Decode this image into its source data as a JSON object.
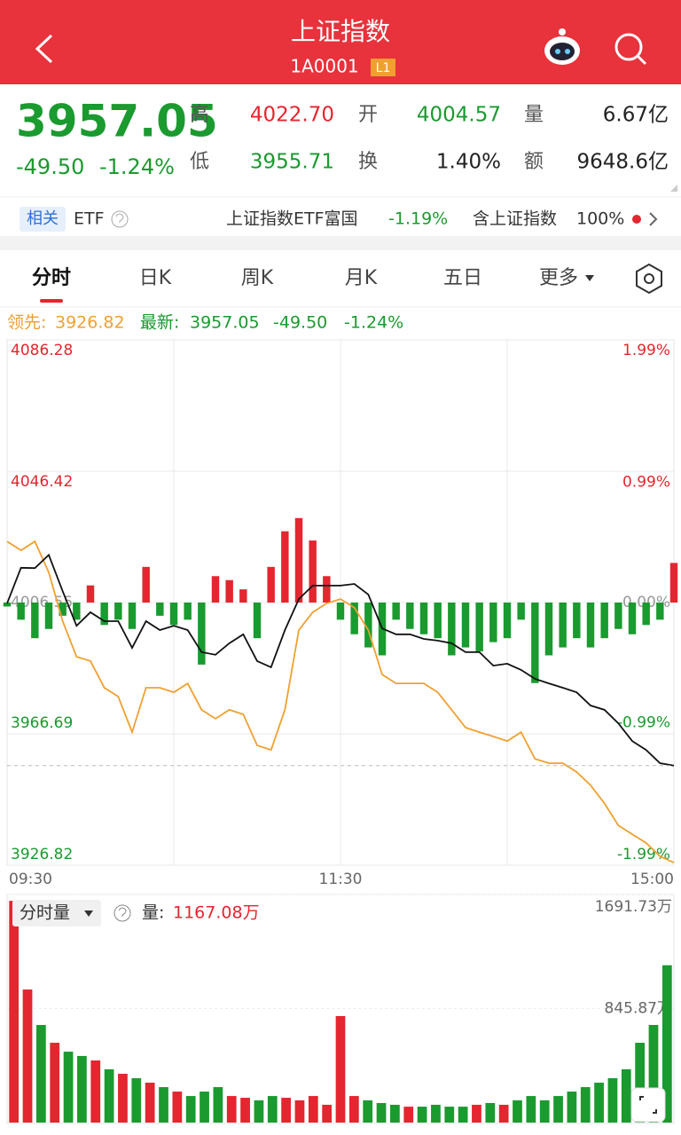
{
  "header": {
    "title": "上证指数",
    "code": "1A0001",
    "badge": "L1"
  },
  "quote": {
    "price": "3957.05",
    "change": "-49.50",
    "change_pct": "-1.24%",
    "stats": [
      {
        "label": "高",
        "value": "4022.70",
        "color": "#e3262f"
      },
      {
        "label": "开",
        "value": "4004.57",
        "color": "#1a9a2f"
      },
      {
        "label": "量",
        "value": "6.67亿",
        "color": "#222222"
      },
      {
        "label": "低",
        "value": "3955.71",
        "color": "#1a9a2f"
      },
      {
        "label": "换",
        "value": "1.40%",
        "color": "#222222"
      },
      {
        "label": "额",
        "value": "9648.6亿",
        "color": "#222222"
      }
    ]
  },
  "etf": {
    "tag": "相关",
    "label": "ETF",
    "fund": "上证指数ETF富国",
    "fund_change": "-1.19%",
    "holding": "含上证指数",
    "holding_pct": "100%"
  },
  "tabs": [
    "分时",
    "日K",
    "周K",
    "月K",
    "五日",
    "更多"
  ],
  "legend": {
    "lead_value": "3926.82",
    "last_value": "3957.05",
    "last_change": "-49.50",
    "last_pct": "-1.24%"
  },
  "chart_data": [
    {
      "type": "line",
      "x_labels": [
        "09:30",
        "11:30",
        "15:00"
      ],
      "ylim": [
        3926.82,
        4086.28
      ],
      "yticks": [
        4086.28,
        4046.42,
        4006.55,
        3966.69,
        3926.82
      ],
      "y2lim": [
        -1.99,
        1.99
      ],
      "y2ticks": [
        {
          "value": 1.99,
          "label": "1.99%"
        },
        {
          "value": 0.99,
          "label": "0.99%"
        },
        {
          "value": 0,
          "label": "0.00%"
        },
        {
          "value": -0.99,
          "label": "-0.99%"
        },
        {
          "value": -1.99,
          "label": "-1.99%"
        }
      ],
      "up_color": "#e3262f",
      "down_color": "#1a9a2f",
      "series": [
        {
          "name": "领先:",
          "color": "#f0a030",
          "values": [
            4025.1,
            4022.4,
            4025.1,
            4015.7,
            4000.9,
            3990.1,
            3988.8,
            3980.7,
            3978,
            3967.2,
            3980.7,
            3980.7,
            3979.3,
            3982,
            3974,
            3971.3,
            3974,
            3972.6,
            3963.2,
            3961.8,
            3974,
            3998.2,
            4003.6,
            4006.3,
            4007.6,
            4005,
            3998.2,
            3984.7,
            3982,
            3982,
            3982,
            3979.3,
            3974,
            3968.6,
            3967.2,
            3965.9,
            3964.5,
            3967.2,
            3959.1,
            3957.8,
            3957.8,
            3955.1,
            3951.1,
            3945.6,
            3938.9,
            3936.2,
            3933.6,
            3929.5,
            3927.6
          ]
        },
        {
          "name": "最新:",
          "color": "#111111",
          "values": [
            4006.3,
            4017.1,
            4017,
            4021,
            4010,
            3999.5,
            4003.6,
            4000.9,
            4000.9,
            3992.8,
            4000.9,
            3998.2,
            3999.5,
            3998.2,
            3991.5,
            3990.7,
            3994.2,
            3996.9,
            3988.8,
            3986.9,
            3998.2,
            4007.6,
            4011.7,
            4011.7,
            4011.7,
            4012.2,
            4009,
            3998.7,
            3996.9,
            3996.9,
            3995.5,
            3995,
            3994.2,
            3991.5,
            3991.5,
            3987.4,
            3988,
            3986.1,
            3983.4,
            3982,
            3980.7,
            3979.3,
            3975.3,
            3974,
            3969.9,
            3964.5,
            3961.8,
            3957.8,
            3957.05
          ]
        },
        {
          "type": "bar",
          "axis": "y2",
          "values": [
            -0.03,
            -0.13,
            -0.27,
            -0.2,
            -0.1,
            -0.13,
            0.13,
            -0.17,
            -0.13,
            -0.2,
            0.27,
            -0.1,
            -0.17,
            -0.13,
            -0.47,
            0.2,
            0.17,
            0.1,
            -0.27,
            0.27,
            0.54,
            0.64,
            0.47,
            0.2,
            -0.13,
            -0.24,
            -0.34,
            -0.4,
            -0.13,
            -0.2,
            -0.24,
            -0.27,
            -0.4,
            -0.34,
            -0.37,
            -0.3,
            -0.27,
            -0.13,
            -0.61,
            -0.4,
            -0.34,
            -0.27,
            -0.34,
            -0.27,
            -0.2,
            -0.24,
            -0.17,
            -0.13,
            0.3
          ]
        }
      ]
    },
    {
      "type": "bar",
      "title": "分时量",
      "value_name": "量:",
      "latest_label": "1167.08万",
      "ylim": [
        0,
        1691.73
      ],
      "yticks": [
        {
          "value": 1691.73,
          "label": "1691.73万"
        },
        {
          "value": 845.87,
          "label": "845.87万"
        }
      ],
      "values": [
        1645,
        987,
        724,
        592,
        526,
        494,
        461,
        395,
        362,
        329,
        296,
        263,
        230,
        197,
        230,
        263,
        197,
        184,
        165,
        197,
        184,
        165,
        197,
        132,
        790,
        197,
        165,
        145,
        132,
        118,
        118,
        132,
        118,
        118,
        132,
        145,
        132,
        165,
        197,
        165,
        197,
        230,
        263,
        296,
        329,
        395,
        592,
        724,
        1167.08
      ]
    }
  ]
}
